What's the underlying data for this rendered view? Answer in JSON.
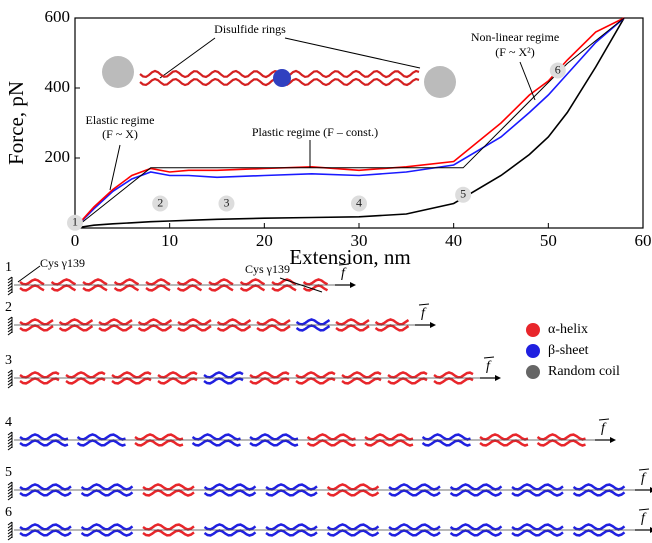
{
  "chart_data": {
    "type": "line",
    "x_label": "Extension, nm",
    "y_label": "Force, pN",
    "x": [
      0,
      2,
      4,
      6,
      8,
      10,
      12,
      15,
      20,
      25,
      30,
      35,
      40,
      45,
      48,
      50,
      52,
      55,
      58
    ],
    "series": [
      {
        "color": "#000000",
        "values": [
          0,
          8,
          12,
          15,
          18,
          20,
          22,
          25,
          28,
          30,
          32,
          40,
          70,
          150,
          210,
          260,
          330,
          460,
          600
        ]
      },
      {
        "color": "#1a1aff",
        "values": [
          0,
          55,
          105,
          140,
          160,
          150,
          150,
          145,
          150,
          155,
          150,
          160,
          180,
          260,
          330,
          380,
          440,
          530,
          600
        ]
      },
      {
        "color": "#ff0000",
        "values": [
          0,
          60,
          110,
          150,
          170,
          160,
          165,
          165,
          170,
          175,
          165,
          175,
          190,
          300,
          380,
          420,
          480,
          560,
          600
        ]
      }
    ],
    "xlim": [
      0,
      60
    ],
    "xticks": [
      0,
      10,
      20,
      30,
      40,
      50,
      60
    ],
    "ylim": [
      0,
      600
    ],
    "yticks": [
      200,
      400,
      600
    ],
    "annotations": [
      "Disulfide rings",
      "Elastic regime",
      "(F ~ X)",
      "Plastic regime (F – const.)",
      "Non-linear regime",
      "(F ~ X²)"
    ]
  },
  "structures": {
    "labels": [
      "1",
      "2",
      "3",
      "4",
      "5",
      "6"
    ],
    "site": [
      "Cys γ139",
      "Cys γ139"
    ],
    "force": "f",
    "legend": [
      {
        "name": "α-helix",
        "color": "#e8262b"
      },
      {
        "name": "β-sheet",
        "color": "#2020e0"
      },
      {
        "name": "Random coil",
        "color": "#666666"
      }
    ]
  }
}
